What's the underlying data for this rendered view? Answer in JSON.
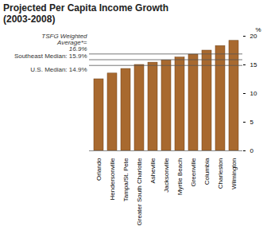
{
  "chart_data": {
    "type": "bar",
    "title": "Projected Per Capita Income Growth\n(2003-2008)",
    "categories": [
      "Orlando",
      "Hendersonville",
      "Tampa/St. Pete",
      "Greater South Charlotte",
      "Asheville",
      "Jacksonville",
      "Myrtle Beach",
      "Greenville",
      "Columbia",
      "Charleston",
      "Wilmington"
    ],
    "values": [
      12.5,
      13.5,
      14.3,
      15.0,
      15.4,
      15.8,
      16.3,
      16.8,
      17.5,
      18.3,
      19.2
    ],
    "color": "#a8692f",
    "y_label": "%",
    "ylim": [
      0,
      20
    ],
    "yticks": [
      0,
      5,
      10,
      15,
      20
    ],
    "annotations": [
      {
        "text": "TSFG Weighted Average*= 16.9%",
        "value": 16.9
      },
      {
        "text": "Southeast Median: 15.9%",
        "value": 15.9
      },
      {
        "text": "U.S. Median: 14.9%",
        "value": 14.9
      }
    ]
  }
}
